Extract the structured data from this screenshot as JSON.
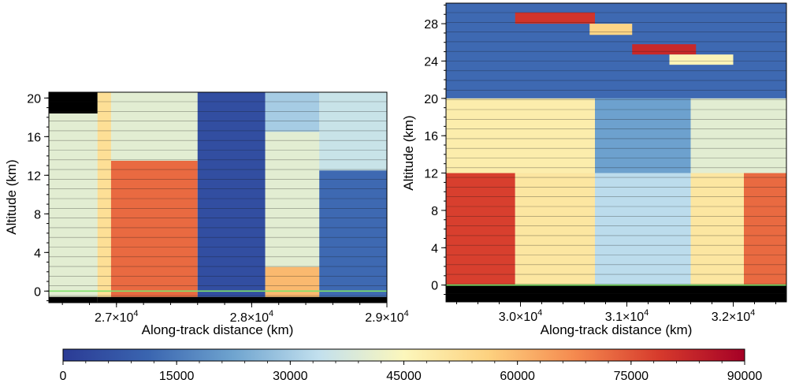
{
  "chart_data": [
    {
      "type": "heatmap",
      "xlabel": "Along-track distance (km)",
      "ylabel": "Altitude (km)",
      "xlim": [
        26500,
        29000
      ],
      "ylim": [
        -1.2,
        20.6
      ],
      "xticks": [
        27000,
        28000,
        29000
      ],
      "xtick_labels": [
        {
          "mantissa": "2.7×10",
          "exp": "4"
        },
        {
          "mantissa": "2.8×10",
          "exp": "4"
        },
        {
          "mantissa": "2.9×10",
          "exp": "4"
        }
      ],
      "yticks": [
        0,
        4,
        8,
        12,
        16,
        20
      ],
      "ytick_labels": [
        "0",
        "4",
        "8",
        "12",
        "16",
        "20"
      ],
      "surface_line_color": "#7fe36a",
      "regions": [
        {
          "x": [
            26500,
            26860
          ],
          "y": [
            -1.2,
            -0.6
          ],
          "value": null
        },
        {
          "x": [
            26500,
            26860
          ],
          "y": [
            18.4,
            20.6
          ],
          "value": null
        },
        {
          "x": [
            26860,
            29000
          ],
          "y": [
            -1.2,
            -0.6
          ],
          "value": null
        },
        {
          "x": [
            26860,
            26960
          ],
          "y": [
            -0.6,
            20.6
          ],
          "value": 52000
        },
        {
          "x": [
            26960,
            27600
          ],
          "y": [
            -0.6,
            13.5
          ],
          "value": 72000
        },
        {
          "x": [
            26960,
            27600
          ],
          "y": [
            13.5,
            20.6
          ],
          "value": 40000
        },
        {
          "x": [
            27600,
            28100
          ],
          "y": [
            -0.6,
            20.6
          ],
          "value": 5000
        },
        {
          "x": [
            28100,
            28500
          ],
          "y": [
            -0.6,
            2.5
          ],
          "value": 60000
        },
        {
          "x": [
            28100,
            28500
          ],
          "y": [
            2.5,
            16.5
          ],
          "value": 40000
        },
        {
          "x": [
            28100,
            28500
          ],
          "y": [
            16.5,
            20.6
          ],
          "value": 30000
        },
        {
          "x": [
            28500,
            29000
          ],
          "y": [
            -0.6,
            12.5
          ],
          "value": 12000
        },
        {
          "x": [
            28500,
            29000
          ],
          "y": [
            12.5,
            20.6
          ],
          "value": 35000
        }
      ]
    },
    {
      "type": "heatmap",
      "xlabel": "Along-track distance (km)",
      "ylabel": "Altitude (km)",
      "xlim": [
        29300,
        32500
      ],
      "ylim": [
        -1.8,
        30.2
      ],
      "xticks": [
        30000,
        31000,
        32000
      ],
      "xtick_labels": [
        {
          "mantissa": "3.0×10",
          "exp": "4"
        },
        {
          "mantissa": "3.1×10",
          "exp": "4"
        },
        {
          "mantissa": "3.2×10",
          "exp": "4"
        }
      ],
      "yticks": [
        0,
        4,
        8,
        12,
        16,
        20,
        24,
        28
      ],
      "ytick_labels": [
        "0",
        "4",
        "8",
        "12",
        "16",
        "20",
        "24",
        "28"
      ],
      "surface_line_color": "#7fe36a",
      "regions": [
        {
          "x": [
            29300,
            32500
          ],
          "y": [
            -1.8,
            0
          ],
          "value": null
        },
        {
          "x": [
            29300,
            29950
          ],
          "y": [
            0,
            12
          ],
          "value": 78000
        },
        {
          "x": [
            29950,
            30700
          ],
          "y": [
            0,
            12
          ],
          "value": 50000
        },
        {
          "x": [
            30700,
            31600
          ],
          "y": [
            0,
            12
          ],
          "value": 33000
        },
        {
          "x": [
            31600,
            32100
          ],
          "y": [
            0,
            12
          ],
          "value": 50000
        },
        {
          "x": [
            32100,
            32500
          ],
          "y": [
            0,
            12
          ],
          "value": 72000
        },
        {
          "x": [
            29300,
            30700
          ],
          "y": [
            12,
            20
          ],
          "value": 48000
        },
        {
          "x": [
            30700,
            31600
          ],
          "y": [
            12,
            20
          ],
          "value": 22000
        },
        {
          "x": [
            31600,
            32500
          ],
          "y": [
            12,
            20
          ],
          "value": 40000
        },
        {
          "x": [
            29300,
            32500
          ],
          "y": [
            20,
            30.2
          ],
          "value": 12000
        },
        {
          "x": [
            29950,
            30700
          ],
          "y": [
            28,
            29.2
          ],
          "value": 80000
        },
        {
          "x": [
            30650,
            31050
          ],
          "y": [
            26.8,
            28
          ],
          "value": 55000
        },
        {
          "x": [
            31050,
            31650
          ],
          "y": [
            24.7,
            25.8
          ],
          "value": 82000
        },
        {
          "x": [
            31400,
            32000
          ],
          "y": [
            23.6,
            24.7
          ],
          "value": 46000
        }
      ]
    }
  ],
  "colorbar": {
    "min": 0,
    "max": 90000,
    "ticks": [
      "0",
      "15000",
      "30000",
      "45000",
      "60000",
      "75000",
      "90000"
    ],
    "colors": [
      "#2b3b95",
      "#3a65b0",
      "#6fa4cf",
      "#c2e0ee",
      "#fcf7bc",
      "#fdd17f",
      "#f58a4f",
      "#d63a2c",
      "#a50026"
    ]
  }
}
